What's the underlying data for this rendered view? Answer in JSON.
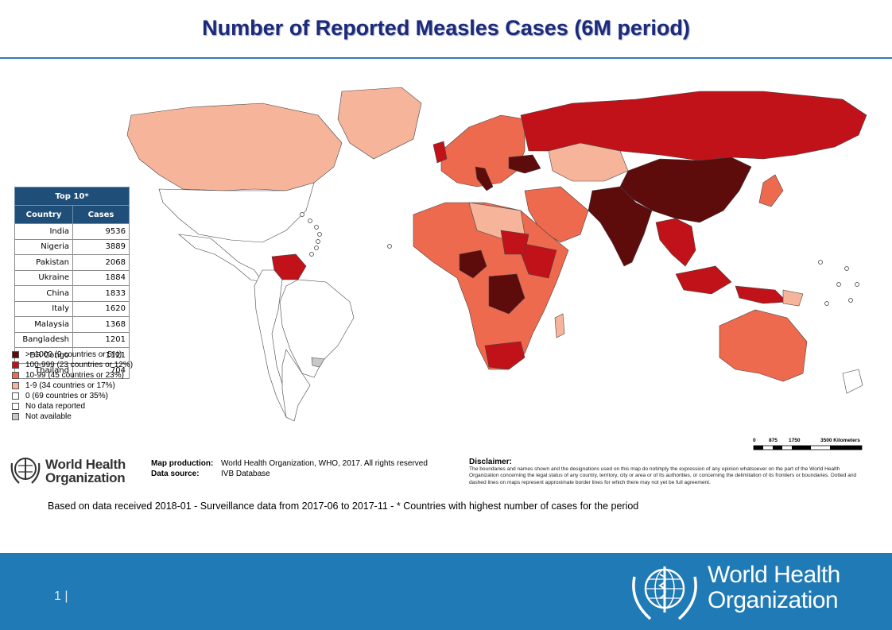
{
  "title": "Number of Reported Measles Cases (6M period)",
  "top10": {
    "header": "Top 10*",
    "col_country": "Country",
    "col_cases": "Cases",
    "rows": [
      {
        "country": "India",
        "cases": "9536"
      },
      {
        "country": "Nigeria",
        "cases": "3889"
      },
      {
        "country": "Pakistan",
        "cases": "2068"
      },
      {
        "country": "Ukraine",
        "cases": "1884"
      },
      {
        "country": "China",
        "cases": "1833"
      },
      {
        "country": "Italy",
        "cases": "1620"
      },
      {
        "country": "Malaysia",
        "cases": "1368"
      },
      {
        "country": "Bangladesh",
        "cases": "1201"
      },
      {
        "country": "DR Congo",
        "cases": "1121"
      },
      {
        "country": "Thailand",
        "cases": "704"
      }
    ]
  },
  "legend": [
    {
      "label": ">=1000 (9 countries or 5%)",
      "color": "#5e0b0b"
    },
    {
      "label": "100-999 (23 countries or 12%)",
      "color": "#c1121a"
    },
    {
      "label": "10-99 (45 countries or 23%)",
      "color": "#ee6a4e"
    },
    {
      "label": "1-9 (34 countries or 17%)",
      "color": "#f6b59a"
    },
    {
      "label": "0 (69 countries or 35%)",
      "color": "#ffffff"
    },
    {
      "label": "No data reported",
      "color": "#ffffff"
    },
    {
      "label": "Not available",
      "color": "#c8c8c8"
    }
  ],
  "scale": {
    "ticks": [
      "0",
      "875",
      "1750",
      "3500 Kilometers"
    ]
  },
  "who_small": {
    "line1": "World Health",
    "line2": "Organization"
  },
  "production": {
    "map_production_key": "Map production:",
    "map_production_val": "World Health Organization, WHO, 2017. All rights reserved",
    "data_source_key": "Data source:",
    "data_source_val": "IVB Database"
  },
  "disclaimer": {
    "title": "Disclaimer:",
    "text": "The boundaries and names shown and the designations used on this map do notimply the expression of any opinion whatsoever on the part of the World Health Organization concerning the legal status of any country, territory, city or area or of its authorities, or concerning the delimitation of its frontiers or boundaries. Dotted and dashed lines on maps represent approximate border lines for which there may not yet be full agreement."
  },
  "based_on": "Based on data received 2018-01 - Surveillance data from 2017-06 to 2017-11 - * Countries with highest number of cases for the period",
  "footer": {
    "page_number": "1",
    "who_line1": "World Health",
    "who_line2": "Organization"
  }
}
